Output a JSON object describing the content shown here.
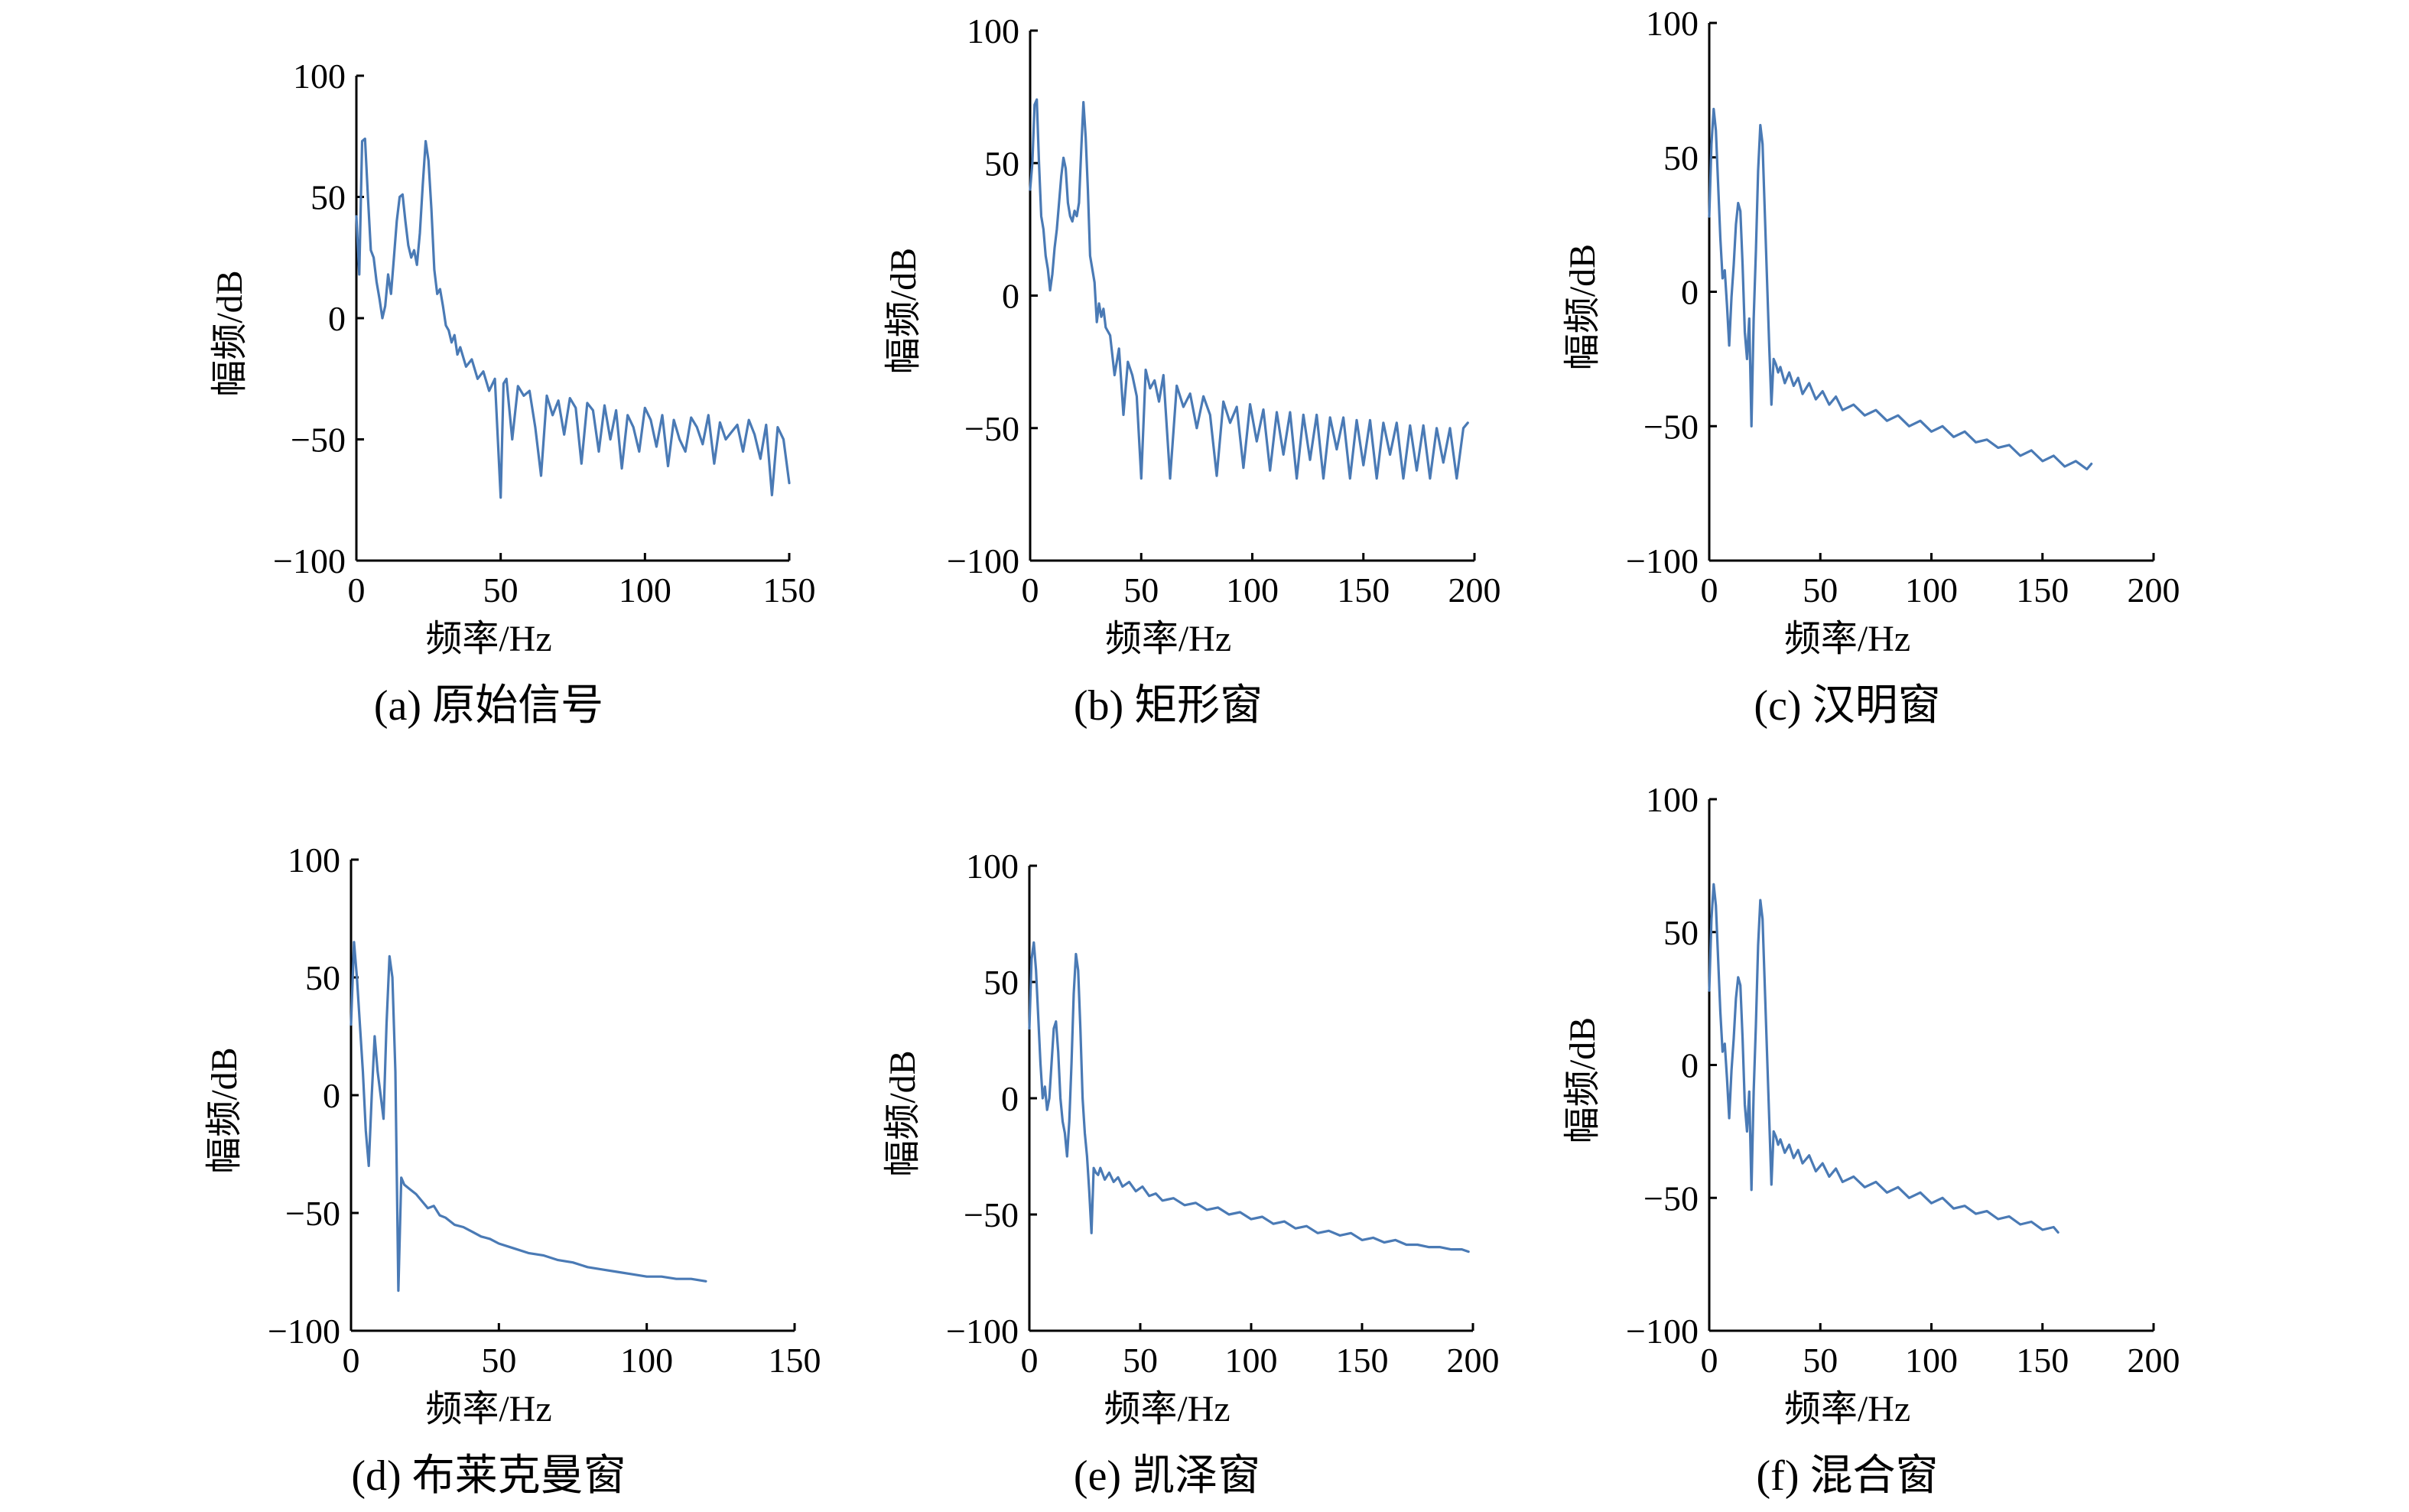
{
  "figure": {
    "line_color": "#4a7ab5"
  },
  "chart_data": [
    {
      "type": "line",
      "caption": "(a) 原始信号",
      "xlabel": "频率/Hz",
      "ylabel": "幅频/dB",
      "xlim": [
        0,
        150
      ],
      "ylim": [
        -100,
        100
      ],
      "xticks": [
        0,
        50,
        100,
        150
      ],
      "yticks": [
        100,
        50,
        0,
        -50,
        -100
      ],
      "xtick_labels": [
        "0",
        "50",
        "100",
        "150"
      ],
      "ytick_labels": [
        "100",
        "50",
        "0",
        "−50",
        "−100"
      ],
      "series": [
        {
          "name": "原始信号",
          "x": [
            0,
            1,
            2,
            3,
            4,
            5,
            6,
            7,
            8,
            9,
            10,
            11,
            12,
            13,
            14,
            15,
            16,
            17,
            18,
            19,
            20,
            21,
            22,
            23,
            24,
            25,
            26,
            27,
            28,
            29,
            30,
            31,
            32,
            33,
            34,
            35,
            36,
            38,
            40,
            42,
            44,
            46,
            48,
            50,
            51,
            52,
            54,
            56,
            58,
            60,
            62,
            64,
            66,
            68,
            70,
            72,
            74,
            76,
            78,
            80,
            82,
            84,
            86,
            88,
            90,
            92,
            94,
            96,
            98,
            100,
            102,
            104,
            106,
            108,
            110,
            112,
            114,
            116,
            118,
            120,
            122,
            124,
            126,
            128,
            130,
            132,
            134,
            136,
            138,
            140,
            142,
            144,
            146,
            148,
            150
          ],
          "values": [
            42,
            18,
            73,
            74,
            50,
            28,
            25,
            15,
            8,
            0,
            5,
            18,
            10,
            25,
            40,
            50,
            51,
            40,
            30,
            25,
            28,
            22,
            35,
            55,
            73,
            65,
            45,
            20,
            10,
            12,
            5,
            -3,
            -5,
            -10,
            -7,
            -15,
            -12,
            -20,
            -17,
            -25,
            -22,
            -30,
            -25,
            -74,
            -27,
            -25,
            -50,
            -28,
            -32,
            -30,
            -45,
            -65,
            -32,
            -40,
            -34,
            -48,
            -33,
            -37,
            -60,
            -35,
            -38,
            -55,
            -36,
            -50,
            -38,
            -62,
            -40,
            -45,
            -55,
            -37,
            -42,
            -53,
            -40,
            -61,
            -42,
            -50,
            -55,
            -41,
            -45,
            -52,
            -40,
            -60,
            -43,
            -50,
            -47,
            -44,
            -55,
            -42,
            -48,
            -58,
            -44,
            -73,
            -45,
            -50,
            -68
          ]
        }
      ]
    },
    {
      "type": "line",
      "caption": "(b) 矩形窗",
      "xlabel": "频率/Hz",
      "ylabel": "幅频/dB",
      "xlim": [
        0,
        200
      ],
      "ylim": [
        -100,
        100
      ],
      "xticks": [
        0,
        50,
        100,
        150,
        200
      ],
      "yticks": [
        100,
        50,
        0,
        -50,
        -100
      ],
      "xtick_labels": [
        "0",
        "50",
        "100",
        "150",
        "200"
      ],
      "ytick_labels": [
        "100",
        "50",
        "0",
        "−50",
        "−100"
      ],
      "series": [
        {
          "name": "矩形窗",
          "x": [
            0,
            1,
            2,
            3,
            4,
            5,
            6,
            7,
            8,
            9,
            10,
            11,
            12,
            13,
            14,
            15,
            16,
            17,
            18,
            19,
            20,
            21,
            22,
            23,
            24,
            25,
            26,
            27,
            28,
            29,
            30,
            31,
            32,
            33,
            34,
            36,
            38,
            40,
            42,
            44,
            46,
            48,
            50,
            52,
            54,
            56,
            58,
            60,
            63,
            66,
            69,
            72,
            75,
            78,
            81,
            84,
            87,
            90,
            93,
            96,
            99,
            102,
            105,
            108,
            111,
            114,
            117,
            120,
            123,
            126,
            129,
            132,
            135,
            138,
            141,
            144,
            147,
            150,
            153,
            156,
            159,
            162,
            165,
            168,
            171,
            174,
            177,
            180,
            183,
            186,
            189,
            192,
            195,
            197
          ],
          "values": [
            40,
            50,
            72,
            74,
            50,
            30,
            25,
            15,
            10,
            2,
            8,
            18,
            25,
            35,
            45,
            52,
            48,
            35,
            30,
            28,
            32,
            30,
            35,
            55,
            73,
            60,
            40,
            15,
            10,
            5,
            -10,
            -3,
            -8,
            -5,
            -12,
            -15,
            -30,
            -20,
            -45,
            -25,
            -30,
            -38,
            -69,
            -28,
            -35,
            -32,
            -40,
            -30,
            -69,
            -34,
            -42,
            -37,
            -50,
            -38,
            -45,
            -68,
            -40,
            -48,
            -42,
            -65,
            -41,
            -55,
            -43,
            -66,
            -44,
            -60,
            -44,
            -69,
            -45,
            -62,
            -45,
            -69,
            -46,
            -58,
            -46,
            -69,
            -47,
            -64,
            -47,
            -69,
            -48,
            -60,
            -48,
            -69,
            -49,
            -66,
            -49,
            -69,
            -50,
            -63,
            -50,
            -69,
            -50,
            -48
          ]
        }
      ]
    },
    {
      "type": "line",
      "caption": "(c) 汉明窗",
      "xlabel": "频率/Hz",
      "ylabel": "幅频/dB",
      "xlim": [
        0,
        200
      ],
      "ylim": [
        -100,
        100
      ],
      "xticks": [
        0,
        50,
        100,
        150,
        200
      ],
      "yticks": [
        100,
        50,
        0,
        -50,
        -100
      ],
      "xtick_labels": [
        "0",
        "50",
        "100",
        "150",
        "200"
      ],
      "ytick_labels": [
        "100",
        "50",
        "0",
        "−50",
        "−100"
      ],
      "series": [
        {
          "name": "汉明窗",
          "x": [
            0,
            1,
            2,
            3,
            4,
            5,
            6,
            7,
            8,
            9,
            10,
            11,
            12,
            13,
            14,
            15,
            16,
            17,
            18,
            19,
            20,
            21,
            22,
            23,
            24,
            25,
            26,
            27,
            28,
            29,
            30,
            31,
            32,
            34,
            36,
            38,
            40,
            42,
            45,
            48,
            51,
            54,
            57,
            60,
            65,
            70,
            75,
            80,
            85,
            90,
            95,
            100,
            105,
            110,
            115,
            120,
            125,
            130,
            135,
            140,
            145,
            150,
            155,
            160,
            165,
            170,
            172
          ],
          "values": [
            28,
            55,
            68,
            60,
            40,
            20,
            5,
            8,
            -5,
            -20,
            -2,
            10,
            25,
            33,
            30,
            10,
            -15,
            -25,
            -10,
            -50,
            -10,
            15,
            45,
            62,
            55,
            30,
            5,
            -20,
            -42,
            -25,
            -27,
            -30,
            -28,
            -34,
            -30,
            -35,
            -32,
            -38,
            -34,
            -40,
            -37,
            -42,
            -39,
            -44,
            -42,
            -46,
            -44,
            -48,
            -46,
            -50,
            -48,
            -52,
            -50,
            -54,
            -52,
            -56,
            -55,
            -58,
            -57,
            -61,
            -59,
            -63,
            -61,
            -65,
            -63,
            -66,
            -64
          ]
        }
      ]
    },
    {
      "type": "line",
      "caption": "(d) 布莱克曼窗",
      "xlabel": "频率/Hz",
      "ylabel": "幅频/dB",
      "xlim": [
        0,
        150
      ],
      "ylim": [
        -100,
        100
      ],
      "xticks": [
        0,
        50,
        100,
        150
      ],
      "yticks": [
        100,
        50,
        0,
        -50,
        -100
      ],
      "xtick_labels": [
        "0",
        "50",
        "100",
        "150"
      ],
      "ytick_labels": [
        "100",
        "50",
        "0",
        "−50",
        "−100"
      ],
      "series": [
        {
          "name": "布莱克曼窗",
          "x": [
            0,
            1,
            2,
            3,
            4,
            5,
            6,
            7,
            8,
            9,
            10,
            11,
            12,
            13,
            14,
            15,
            16,
            17,
            18,
            20,
            22,
            24,
            26,
            28,
            30,
            32,
            35,
            38,
            41,
            44,
            47,
            50,
            55,
            60,
            65,
            70,
            75,
            80,
            85,
            90,
            95,
            100,
            105,
            110,
            115,
            120
          ],
          "values": [
            30,
            65,
            50,
            30,
            10,
            -15,
            -30,
            0,
            25,
            10,
            0,
            -10,
            30,
            59,
            50,
            10,
            -83,
            -35,
            -38,
            -40,
            -42,
            -45,
            -48,
            -47,
            -51,
            -52,
            -55,
            -56,
            -58,
            -60,
            -61,
            -63,
            -65,
            -67,
            -68,
            -70,
            -71,
            -73,
            -74,
            -75,
            -76,
            -77,
            -77,
            -78,
            -78,
            -79
          ]
        }
      ]
    },
    {
      "type": "line",
      "caption": "(e) 凯泽窗",
      "xlabel": "频率/Hz",
      "ylabel": "幅频/dB",
      "xlim": [
        0,
        200
      ],
      "ylim": [
        -100,
        100
      ],
      "xticks": [
        0,
        50,
        100,
        150,
        200
      ],
      "yticks": [
        100,
        50,
        0,
        -50,
        -100
      ],
      "xtick_labels": [
        "0",
        "50",
        "100",
        "150",
        "200"
      ],
      "ytick_labels": [
        "100",
        "50",
        "0",
        "−50",
        "−100"
      ],
      "series": [
        {
          "name": "凯泽窗",
          "x": [
            0,
            1,
            2,
            3,
            4,
            5,
            6,
            7,
            8,
            9,
            10,
            11,
            12,
            13,
            14,
            15,
            16,
            17,
            18,
            19,
            20,
            21,
            22,
            23,
            24,
            25,
            26,
            27,
            28,
            29,
            30,
            31,
            32,
            34,
            36,
            38,
            40,
            42,
            45,
            48,
            51,
            54,
            57,
            60,
            65,
            70,
            75,
            80,
            85,
            90,
            95,
            100,
            105,
            110,
            115,
            120,
            125,
            130,
            135,
            140,
            145,
            150,
            155,
            160,
            165,
            170,
            175,
            180,
            185,
            190,
            195,
            198
          ],
          "values": [
            30,
            60,
            67,
            55,
            35,
            15,
            0,
            5,
            -5,
            0,
            15,
            30,
            33,
            20,
            0,
            -10,
            -15,
            -25,
            -10,
            15,
            45,
            62,
            55,
            30,
            0,
            -15,
            -25,
            -40,
            -58,
            -30,
            -32,
            -33,
            -30,
            -35,
            -32,
            -36,
            -34,
            -38,
            -36,
            -40,
            -38,
            -42,
            -41,
            -44,
            -43,
            -46,
            -45,
            -48,
            -47,
            -50,
            -49,
            -52,
            -51,
            -54,
            -53,
            -56,
            -55,
            -58,
            -57,
            -59,
            -58,
            -61,
            -60,
            -62,
            -61,
            -63,
            -63,
            -64,
            -64,
            -65,
            -65,
            -66
          ]
        }
      ]
    },
    {
      "type": "line",
      "caption": "(f) 混合窗",
      "xlabel": "频率/Hz",
      "ylabel": "幅频/dB",
      "xlim": [
        0,
        200
      ],
      "ylim": [
        -100,
        100
      ],
      "xticks": [
        0,
        50,
        100,
        150,
        200
      ],
      "yticks": [
        100,
        50,
        0,
        -50,
        -100
      ],
      "xtick_labels": [
        "0",
        "50",
        "100",
        "150",
        "200"
      ],
      "ytick_labels": [
        "100",
        "50",
        "0",
        "−50",
        "−100"
      ],
      "series": [
        {
          "name": "混合窗",
          "x": [
            0,
            1,
            2,
            3,
            4,
            5,
            6,
            7,
            8,
            9,
            10,
            11,
            12,
            13,
            14,
            15,
            16,
            17,
            18,
            19,
            20,
            21,
            22,
            23,
            24,
            25,
            26,
            27,
            28,
            29,
            30,
            31,
            32,
            34,
            36,
            38,
            40,
            42,
            45,
            48,
            51,
            54,
            57,
            60,
            65,
            70,
            75,
            80,
            85,
            90,
            95,
            100,
            105,
            110,
            115,
            120,
            125,
            130,
            135,
            140,
            145,
            150,
            155,
            157
          ],
          "values": [
            28,
            55,
            68,
            60,
            40,
            20,
            5,
            8,
            -5,
            -20,
            -2,
            10,
            25,
            33,
            30,
            10,
            -15,
            -25,
            -10,
            -47,
            -10,
            15,
            45,
            62,
            55,
            30,
            5,
            -20,
            -45,
            -25,
            -27,
            -30,
            -28,
            -33,
            -30,
            -35,
            -32,
            -37,
            -34,
            -40,
            -37,
            -42,
            -39,
            -44,
            -42,
            -46,
            -44,
            -48,
            -46,
            -50,
            -48,
            -52,
            -50,
            -54,
            -53,
            -56,
            -55,
            -58,
            -57,
            -60,
            -59,
            -62,
            -61,
            -63
          ]
        }
      ]
    }
  ]
}
